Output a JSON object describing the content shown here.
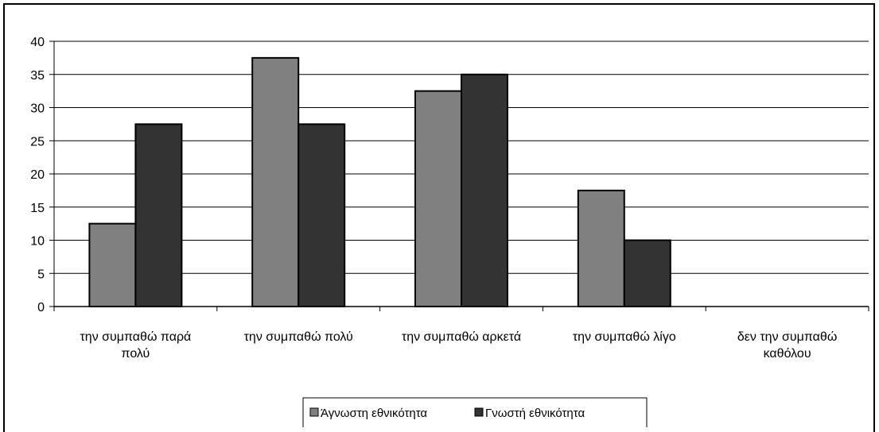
{
  "chart_data": {
    "type": "bar",
    "categories": [
      [
        "την συμπαθώ παρά",
        "πολύ"
      ],
      [
        "την συμπαθώ πολύ"
      ],
      [
        "την συμπαθώ αρκετά"
      ],
      [
        "την συμπαθώ λίγο"
      ],
      [
        "δεν την συμπαθώ",
        "καθόλου"
      ]
    ],
    "series": [
      {
        "name": "Άγνωστη εθνικότητα",
        "color": "#808080",
        "values": [
          12.5,
          37.5,
          32.5,
          17.5,
          0
        ]
      },
      {
        "name": "Γνωστή εθνικότητα",
        "color": "#333333",
        "values": [
          27.5,
          27.5,
          35,
          10,
          0
        ]
      }
    ],
    "ylim": [
      0,
      40
    ],
    "yticks": [
      0,
      5,
      10,
      15,
      20,
      25,
      30,
      35,
      40
    ],
    "grid": true,
    "legend_position": "bottom"
  }
}
